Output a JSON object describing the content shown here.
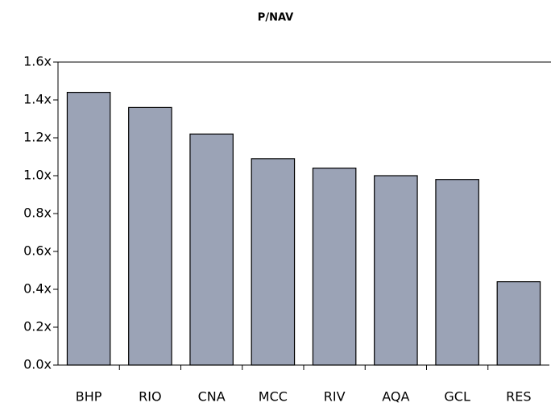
{
  "chart_data": {
    "type": "bar",
    "title": "P/NAV",
    "categories": [
      "BHP",
      "RIO",
      "CNA",
      "MCC",
      "RIV",
      "AQA",
      "GCL",
      "RES"
    ],
    "values": [
      1.44,
      1.36,
      1.22,
      1.09,
      1.04,
      1.0,
      0.98,
      0.44
    ],
    "color": "#9ba3b6",
    "ylim": [
      0,
      1.6
    ],
    "yticks": [
      {
        "value": 0,
        "label": "0.0x"
      },
      {
        "value": 0.2,
        "label": "0.2x"
      },
      {
        "value": 0.4,
        "label": "0.4x"
      },
      {
        "value": 0.6,
        "label": "0.6x"
      },
      {
        "value": 0.8,
        "label": "0.8x"
      },
      {
        "value": 1.0,
        "label": "1.0x"
      },
      {
        "value": 1.2,
        "label": "1.2x"
      },
      {
        "value": 1.4,
        "label": "1.4x"
      },
      {
        "value": 1.6,
        "label": "1.6x"
      }
    ],
    "grid": false
  }
}
